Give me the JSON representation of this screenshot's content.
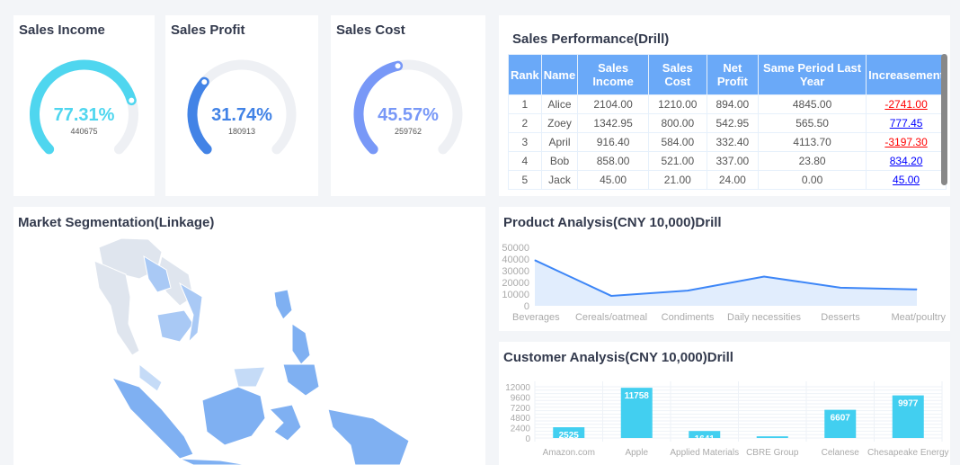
{
  "gauges": [
    {
      "title": "Sales Income",
      "percent_label": "77.31%",
      "percent": 77.31,
      "value": "440675",
      "color": "#4fd6ef"
    },
    {
      "title": "Sales Profit",
      "percent_label": "31.74%",
      "percent": 31.74,
      "value": "180913",
      "color": "#4283e6"
    },
    {
      "title": "Sales Cost",
      "percent_label": "45.57%",
      "percent": 45.57,
      "value": "259762",
      "color": "#7898f7"
    }
  ],
  "performance": {
    "title": "Sales Performance(Drill)",
    "headers": [
      "Rank",
      "Name",
      "Sales Income",
      "Sales Cost",
      "Net Profit",
      "Same Period Last Year",
      "Increasement"
    ],
    "rows": [
      [
        "1",
        "Alice",
        "2104.00",
        "1210.00",
        "894.00",
        "4845.00",
        "-2741.00"
      ],
      [
        "2",
        "Zoey",
        "1342.95",
        "800.00",
        "542.95",
        "565.50",
        "777.45"
      ],
      [
        "3",
        "April",
        "916.40",
        "584.00",
        "332.40",
        "4113.70",
        "-3197.30"
      ],
      [
        "4",
        "Bob",
        "858.00",
        "521.00",
        "337.00",
        "23.80",
        "834.20"
      ],
      [
        "5",
        "Jack",
        "45.00",
        "21.00",
        "24.00",
        "0.00",
        "45.00"
      ]
    ]
  },
  "market": {
    "title": "Market Segmentation(Linkage)"
  },
  "chart_data": [
    {
      "type": "area",
      "title": "Product Analysis(CNY 10,000)Drill",
      "categories": [
        "Beverages",
        "Cereals/oatmeal",
        "Condiments",
        "Daily necessities",
        "Desserts",
        "Meat/poultry"
      ],
      "values": [
        39000,
        8500,
        13000,
        25000,
        15500,
        14000
      ],
      "yticks": [
        "0",
        "10000",
        "20000",
        "30000",
        "40000",
        "50000"
      ],
      "ylim": [
        0,
        50000
      ],
      "color": "#3d86f7"
    },
    {
      "type": "bar",
      "title": "Customer Analysis(CNY 10,000)Drill",
      "categories": [
        "Amazon.com",
        "Apple",
        "Applied Materials",
        "CBRE Group",
        "Celanese",
        "Chesapeake Energy"
      ],
      "values": [
        2525,
        11758,
        1641,
        400,
        6607,
        9977
      ],
      "labels": [
        "2525",
        "11758",
        "1641",
        "",
        "6607",
        "9977"
      ],
      "yticks": [
        "0",
        "2400",
        "4800",
        "7200",
        "9600",
        "12000"
      ],
      "ylim": [
        0,
        12000
      ],
      "grid": true,
      "color": "#42cff0"
    }
  ]
}
